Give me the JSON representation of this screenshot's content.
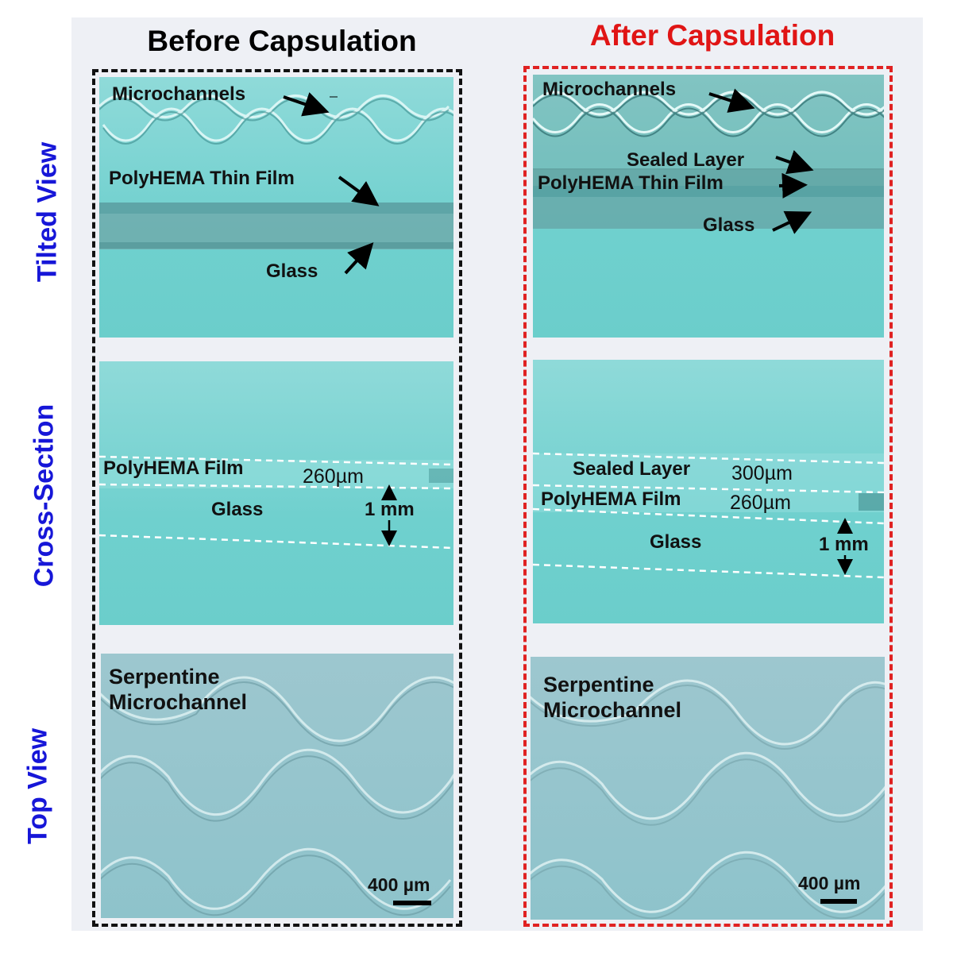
{
  "column_titles": {
    "before": "Before Capsulation",
    "after": "After Capsulation"
  },
  "row_labels": {
    "tilted": "Tilted View",
    "cross": "Cross-Section",
    "top": "Top View"
  },
  "before": {
    "tilted": {
      "microchannels": "Microchannels",
      "polyhema": "PolyHEMA Thin Film",
      "glass": "Glass"
    },
    "cross": {
      "polyhema": "PolyHEMA Film",
      "polyhema_thickness": "260µm",
      "glass": "Glass",
      "glass_thickness": "1 mm"
    },
    "top": {
      "serpentine_line1": "Serpentine",
      "serpentine_line2": "Microchannel",
      "scale": "400 µm"
    }
  },
  "after": {
    "tilted": {
      "microchannels": "Microchannels",
      "sealed": "Sealed Layer",
      "polyhema": "PolyHEMA Thin Film",
      "glass": "Glass"
    },
    "cross": {
      "sealed": "Sealed Layer",
      "sealed_thickness": "300µm",
      "polyhema": "PolyHEMA Film",
      "polyhema_thickness": "260µm",
      "glass": "Glass",
      "glass_thickness": "1 mm"
    },
    "top": {
      "serpentine_line1": "Serpentine",
      "serpentine_line2": "Microchannel",
      "scale": "400 µm"
    }
  },
  "colors": {
    "before_accent": "#000000",
    "after_accent": "#e01515",
    "row_label": "#1616d8"
  }
}
